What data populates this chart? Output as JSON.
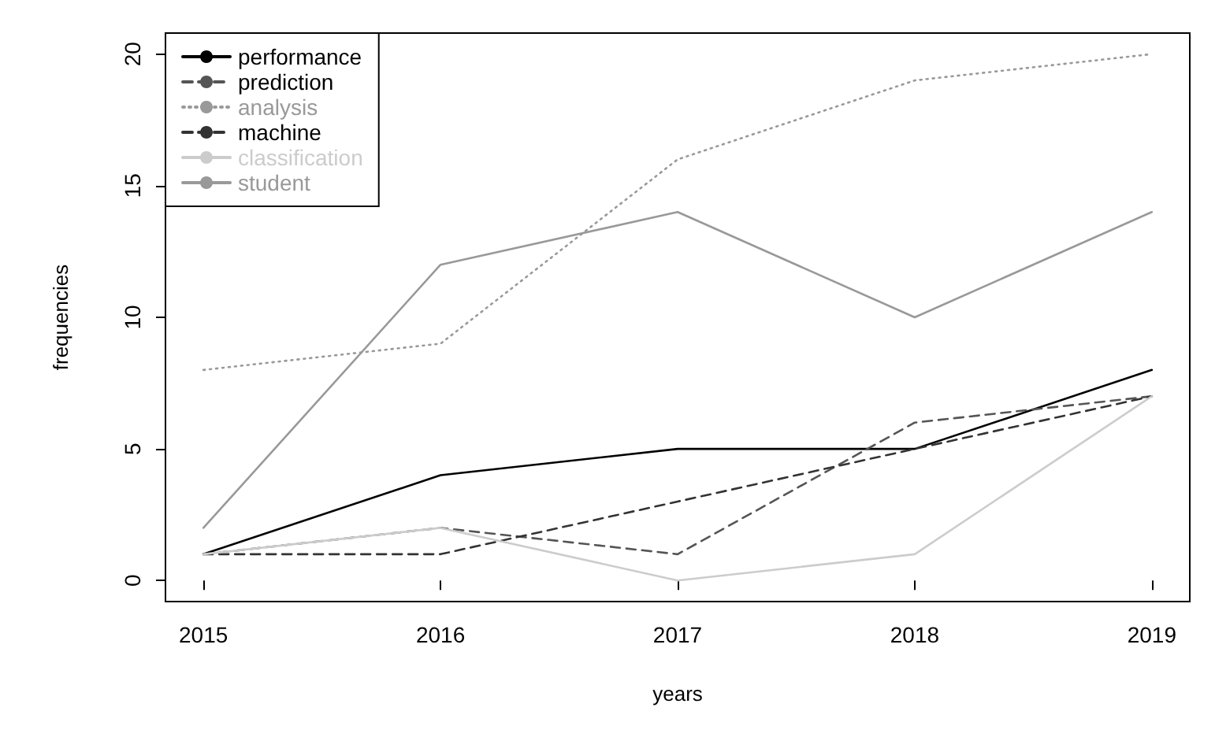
{
  "chart_data": {
    "type": "line",
    "xlabel": "years",
    "ylabel": "frequencies",
    "x": [
      2015,
      2016,
      2017,
      2018,
      2019
    ],
    "xlim": [
      2014.84,
      2019.16
    ],
    "xticks": [
      2015,
      2016,
      2017,
      2018,
      2019
    ],
    "ylim": [
      -0.8,
      20.8
    ],
    "yticks": [
      0,
      5,
      10,
      15,
      20
    ],
    "grid": false,
    "legend": "top left",
    "marker": "none",
    "series": [
      {
        "name": "performance",
        "color": "#000000",
        "line_style": "solid",
        "values": [
          1,
          4,
          5,
          5,
          8
        ]
      },
      {
        "name": "prediction",
        "color": "#555555",
        "line_style": "dashed",
        "values": [
          1,
          2,
          1,
          6,
          7
        ]
      },
      {
        "name": "analysis",
        "color": "#999999",
        "line_style": "dotted",
        "values": [
          8,
          9,
          16,
          19,
          20
        ]
      },
      {
        "name": "machine",
        "color": "#333333",
        "line_style": "dashed",
        "values": [
          1,
          1,
          3,
          5,
          7
        ]
      },
      {
        "name": "classification",
        "color": "#cccccc",
        "line_style": "solid",
        "values": [
          1,
          2,
          0,
          1,
          7
        ]
      },
      {
        "name": "student",
        "color": "#999999",
        "line_style": "solid",
        "values": [
          2,
          12,
          14,
          10,
          14
        ]
      }
    ]
  }
}
